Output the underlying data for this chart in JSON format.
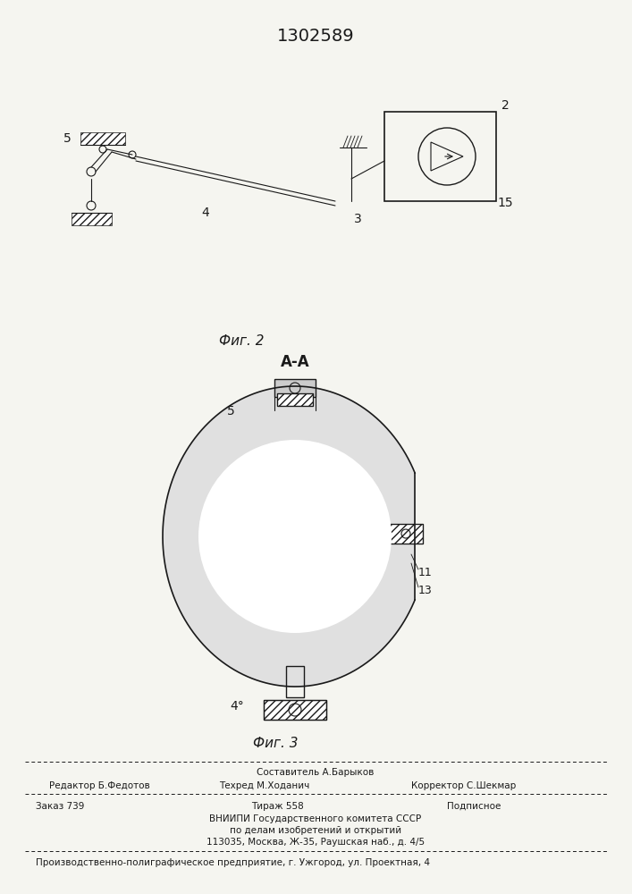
{
  "patent_number": "1302589",
  "background_color": "#f5f5f0",
  "line_color": "#1a1a1a",
  "fig2_label": "Фиг. 2",
  "fig3_label": "Фиг. 3",
  "section_label": "А-А",
  "footer": {
    "sostavitel": "Составитель А.Барыков",
    "redaktor": "Редактор Б.Федотов",
    "tehred": "Техред М.Ходанич",
    "korrektor": "Корректор С.Шекмар",
    "zakaz": "Заказ 739",
    "tirazh": "Тираж 558",
    "podpisnoe": "Подписное",
    "vniip1": "ВНИИПИ Государственного комитета СССР",
    "vniip2": "по делам изобретений и открытий",
    "vniip3": "113035, Москва, Ж-35, Раушская наб., д. 4/5",
    "proizv": "Производственно-полиграфическое предприятие, г. Ужгород, ул. Проектная, 4"
  }
}
